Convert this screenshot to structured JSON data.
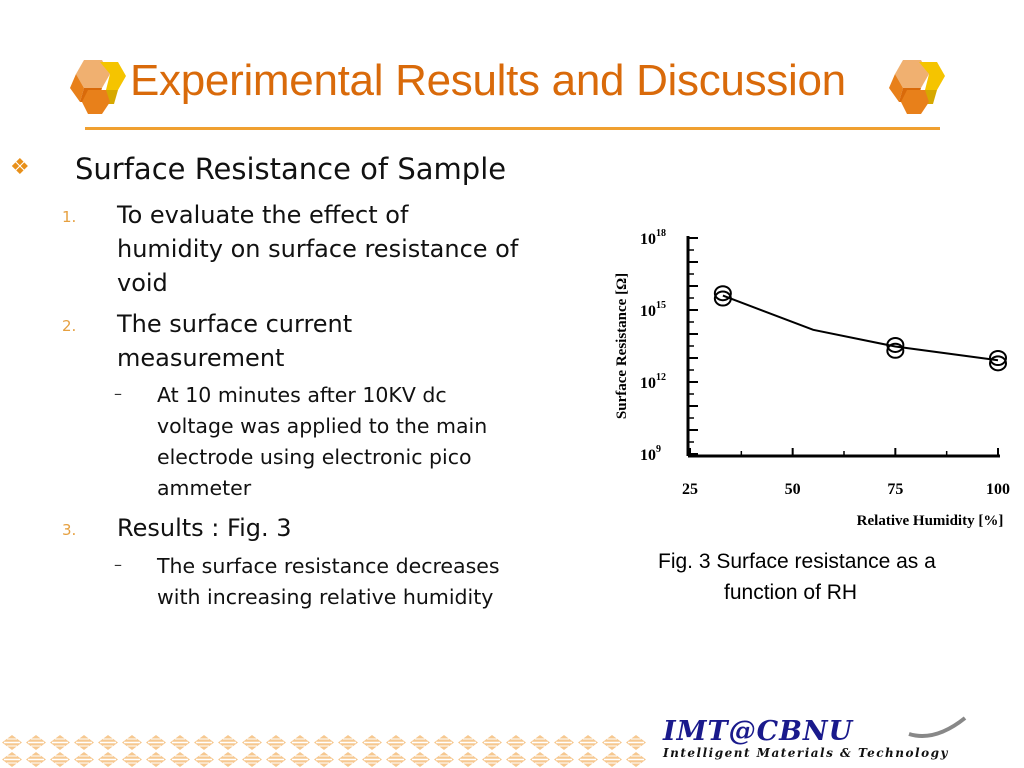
{
  "slide": {
    "title": "Experimental Results and Discussion",
    "heading": "Surface Resistance of Sample",
    "bullet_symbol": "❖",
    "items": [
      {
        "number": "1.",
        "lines": [
          "To evaluate the effect of",
          "humidity on surface resistance of",
          "void"
        ]
      },
      {
        "number": "2.",
        "lines": [
          "The surface current",
          "measurement"
        ],
        "sub": {
          "dash": "–",
          "lines": [
            "At 10 minutes after 10KV dc",
            "voltage was applied to the main",
            "electrode using electronic pico",
            "ammeter"
          ]
        }
      },
      {
        "number": "3.",
        "lines": [
          "Results : Fig. 3"
        ],
        "sub": {
          "dash": "–",
          "lines": [
            "The surface resistance decreases",
            "with increasing relative humidity"
          ]
        }
      }
    ]
  },
  "figure": {
    "caption_line1": "Fig. 3 Surface resistance as a",
    "caption_line2": "function of RH"
  },
  "chart_data": {
    "type": "line",
    "title": "",
    "xlabel": "Relative Humidity [%]",
    "ylabel": "Surface Resistance [Ω]",
    "xlim": [
      25,
      100
    ],
    "ylim": [
      1000000000.0,
      1e+18
    ],
    "y_scale": "log",
    "x_ticks": [
      25,
      50,
      75,
      100
    ],
    "y_ticks": [
      {
        "base": "10",
        "exp": "9",
        "value": 1000000000.0
      },
      {
        "base": "10",
        "exp": "12",
        "value": 1000000000000.0
      },
      {
        "base": "10",
        "exp": "15",
        "value": 1000000000000000.0
      },
      {
        "base": "10",
        "exp": "18",
        "value": 1e+18
      }
    ],
    "series": [
      {
        "line": [
          [
            33,
            4000000000000000.0
          ],
          [
            55,
            150000000000000.0
          ],
          [
            75,
            30000000000000.0
          ],
          [
            100,
            8000000000000.0
          ]
        ],
        "markers": [
          [
            33,
            5000000000000000.0
          ],
          [
            33,
            3000000000000000.0
          ],
          [
            75,
            35000000000000.0
          ],
          [
            75,
            20000000000000.0
          ],
          [
            100,
            10000000000000.0
          ],
          [
            100,
            6000000000000.0
          ]
        ]
      }
    ],
    "grid": false,
    "legend": "none"
  },
  "footer": {
    "logo_main": "IMT@CBNU",
    "logo_sub": "Intelligent Materials & Technology"
  },
  "colors": {
    "title": "#d96a0a",
    "rule": "#f0a030",
    "cube_orange": "#e8801a",
    "cube_yellow": "#f5c400",
    "logo_blue": "#1a1a8c"
  }
}
